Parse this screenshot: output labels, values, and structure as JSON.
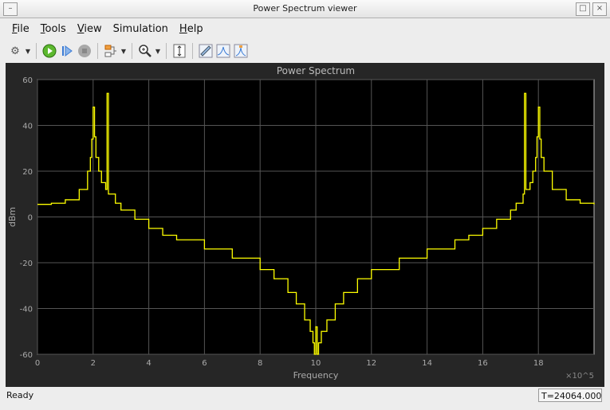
{
  "window": {
    "title": "Power Spectrum viewer"
  },
  "menu": [
    {
      "label": "File",
      "u": "F",
      "rest": "ile"
    },
    {
      "label": "Tools",
      "u": "T",
      "rest": "ools"
    },
    {
      "label": "View",
      "u": "V",
      "rest": "iew"
    },
    {
      "label": "Simulation",
      "pre": "Si",
      "u": "m",
      "rest": "ulation"
    },
    {
      "label": "Help",
      "u": "H",
      "rest": "elp"
    }
  ],
  "toolbar": [
    "settings-icon",
    "run-icon",
    "step-icon",
    "stop-icon",
    "signal-icon",
    "zoom-in-icon",
    "fit-icon",
    "measure-icon",
    "peak-icon",
    "cursor-icon"
  ],
  "status": {
    "text": "Ready",
    "time": "T=24064.000"
  },
  "chart_data": {
    "type": "line",
    "title": "Power Spectrum",
    "xlabel": "Frequency",
    "ylabel": "dBm",
    "x_multiplier": "×10^5",
    "xlim": [
      0,
      20
    ],
    "ylim": [
      -60,
      60
    ],
    "xticks": [
      0,
      2,
      4,
      6,
      8,
      10,
      12,
      14,
      16,
      18
    ],
    "yticks": [
      -60,
      -40,
      -20,
      0,
      20,
      40,
      60
    ],
    "grid": true,
    "color": "#ffff00",
    "series": [
      {
        "x": [
          0,
          0.5,
          1,
          1.5,
          1.8,
          1.9,
          1.95,
          2.0,
          2.05,
          2.1,
          2.2,
          2.3,
          2.45,
          2.5,
          2.55,
          2.8,
          3,
          3.5,
          4,
          4.5,
          5,
          6,
          7,
          8,
          8.5,
          9,
          9.3,
          9.6,
          9.8,
          9.9,
          9.95,
          10,
          10.05,
          10.1,
          10.2,
          10.4,
          10.7,
          11,
          11.5,
          12,
          13,
          14,
          15,
          15.5,
          16,
          16.5,
          17,
          17.2,
          17.45,
          17.5,
          17.55,
          17.7,
          17.8,
          17.9,
          17.95,
          18.0,
          18.05,
          18.1,
          18.2,
          18.5,
          19,
          19.5,
          20
        ],
        "y": [
          5.5,
          6,
          7.5,
          12,
          20,
          26,
          34,
          48,
          35,
          26,
          20,
          15,
          12,
          54,
          10,
          6,
          3,
          -1,
          -5,
          -8,
          -10,
          -14,
          -18,
          -23,
          -27,
          -33,
          -38,
          -45,
          -50,
          -55,
          -60,
          -48,
          -60,
          -55,
          -50,
          -45,
          -38,
          -33,
          -27,
          -23,
          -18,
          -14,
          -10,
          -8,
          -5,
          -1,
          3,
          6,
          10,
          54,
          12,
          15,
          20,
          26,
          35,
          48,
          34,
          26,
          20,
          12,
          7.5,
          6,
          5.5
        ]
      }
    ]
  }
}
